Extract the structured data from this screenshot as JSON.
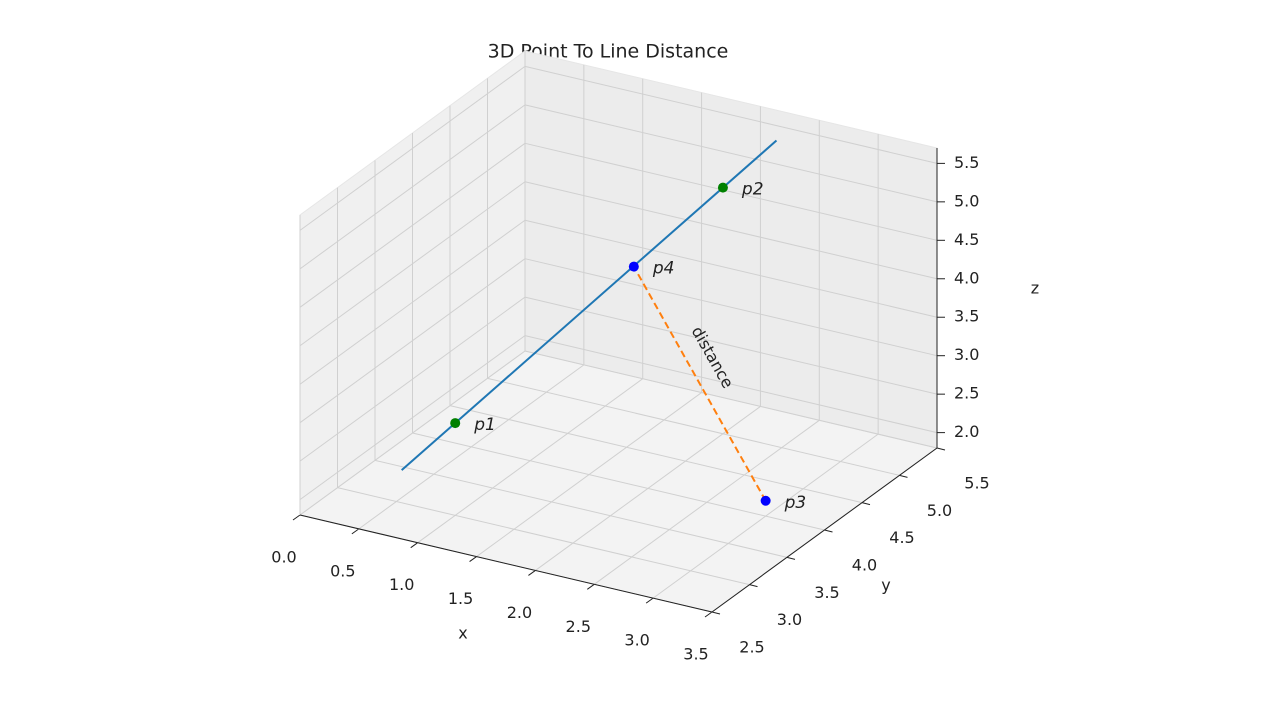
{
  "chart_data": {
    "type": "line3d",
    "title": "3D Point To Line Distance",
    "xlabel": "x",
    "ylabel": "y",
    "zlabel": "z",
    "xlim": [
      0,
      3.5
    ],
    "ylim": [
      2.5,
      5.5
    ],
    "zlim": [
      1.8,
      5.7
    ],
    "xticks": [
      {
        "value": 0,
        "label": "0.0"
      },
      0.5,
      {
        "value": 1,
        "label": "1.0"
      },
      1.5,
      {
        "value": 2,
        "label": "2.0"
      },
      2.5,
      {
        "value": 3,
        "label": "3.0"
      },
      3.5
    ],
    "yticks": [
      2.5,
      {
        "value": 3,
        "label": "3.0"
      },
      3.5,
      {
        "value": 4,
        "label": "4.0"
      },
      4.5,
      {
        "value": 5,
        "label": "5.0"
      },
      5.5
    ],
    "zticks": [
      {
        "value": 2,
        "label": "2.0"
      },
      2.5,
      {
        "value": 3,
        "label": "3.0"
      },
      3.5,
      {
        "value": 4,
        "label": "4.0"
      },
      4.5,
      {
        "value": 5,
        "label": "5.0"
      },
      5.5
    ],
    "grid": true,
    "line": {
      "color": "#1f77b4",
      "x": [
        0.8,
        2.2
      ],
      "y": [
        2.6,
        5.4
      ],
      "z": [
        2.6,
        5.4
      ]
    },
    "distance_line": {
      "label": "distance",
      "color": "#ff7f0e",
      "dashed": true,
      "x": [
        3,
        1.67
      ],
      "y": [
        4,
        4.33
      ],
      "z": [
        2,
        4.33
      ]
    },
    "points": [
      {
        "label": "p1",
        "color": "#008000",
        "x": 1,
        "y": 3,
        "z": 3
      },
      {
        "label": "p2",
        "color": "#008000",
        "x": 2,
        "y": 5,
        "z": 5
      },
      {
        "label": "p3",
        "color": "#0000ff",
        "x": 3,
        "y": 4,
        "z": 2
      },
      {
        "label": "p4",
        "color": "#0000ff",
        "x": 1.67,
        "y": 4.33,
        "z": 4.33
      }
    ]
  }
}
